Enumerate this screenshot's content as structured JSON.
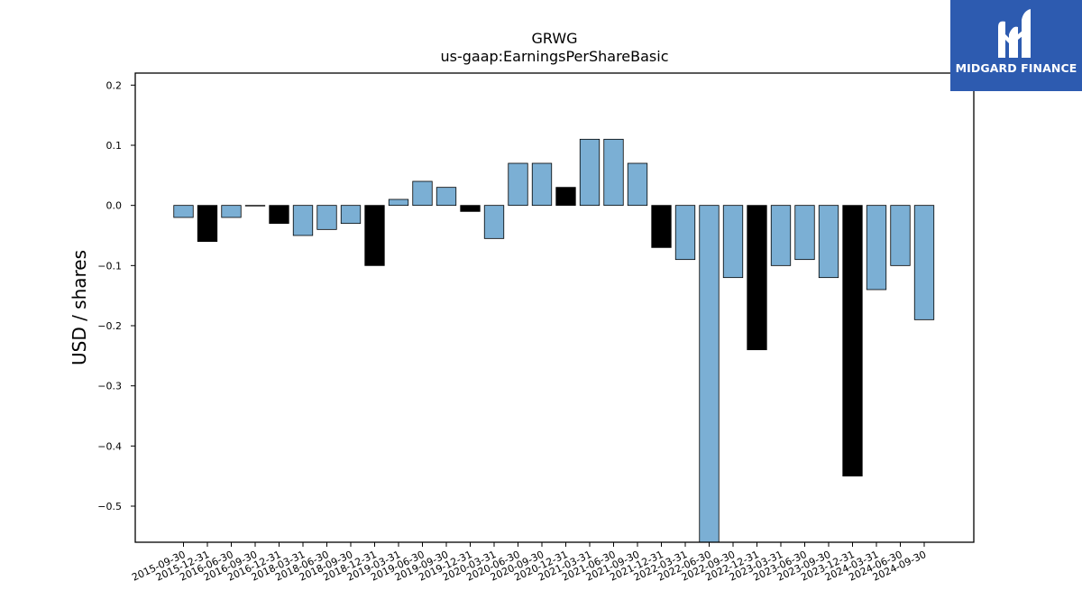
{
  "brand": {
    "name": "MIDGARD FINANCE",
    "logo_icon": "midgard-finance-logo-icon",
    "bg_color": "#2d5bb0"
  },
  "chart_data": {
    "type": "bar",
    "title": "GRWG",
    "subtitle": "us-gaap:EarningsPerShareBasic",
    "xlabel": "",
    "ylabel": "USD / shares",
    "ylim": [
      -0.56,
      0.22
    ],
    "yticks": [
      0.2,
      0.1,
      0.0,
      -0.1,
      -0.2,
      -0.3,
      -0.4,
      -0.5
    ],
    "ytick_labels": [
      "0.2",
      "0.1",
      "0.0",
      "−0.1",
      "−0.2",
      "−0.3",
      "−0.4",
      "−0.5"
    ],
    "grid": false,
    "colors": {
      "quarter": "#7bafd4",
      "year_end": "#000000",
      "edge": "#000000"
    },
    "categories": [
      "2015-09-30",
      "2015-12-31",
      "2016-06-30",
      "2016-09-30",
      "2016-12-31",
      "2018-03-31",
      "2018-06-30",
      "2018-09-30",
      "2018-12-31",
      "2019-03-31",
      "2019-06-30",
      "2019-09-30",
      "2019-12-31",
      "2020-03-31",
      "2020-06-30",
      "2020-09-30",
      "2020-12-31",
      "2021-03-31",
      "2021-06-30",
      "2021-09-30",
      "2021-12-31",
      "2022-03-31",
      "2022-06-30",
      "2022-09-30",
      "2022-12-31",
      "2023-03-31",
      "2023-06-30",
      "2023-09-30",
      "2023-12-31",
      "2024-03-31",
      "2024-06-30",
      "2024-09-30"
    ],
    "values": [
      -0.02,
      -0.06,
      -0.02,
      0.0,
      -0.03,
      -0.05,
      -0.04,
      -0.03,
      -0.1,
      0.01,
      0.04,
      0.03,
      -0.01,
      -0.055,
      0.07,
      0.07,
      0.03,
      0.11,
      0.11,
      0.07,
      -0.07,
      -0.09,
      -0.6,
      -0.12,
      -0.24,
      -0.1,
      -0.09,
      -0.12,
      -0.45,
      -0.14,
      -0.1,
      -0.19
    ],
    "bar_types": [
      "quarter",
      "year_end",
      "quarter",
      "quarter",
      "year_end",
      "quarter",
      "quarter",
      "quarter",
      "year_end",
      "quarter",
      "quarter",
      "quarter",
      "year_end",
      "quarter",
      "quarter",
      "quarter",
      "year_end",
      "quarter",
      "quarter",
      "quarter",
      "year_end",
      "quarter",
      "quarter",
      "quarter",
      "year_end",
      "quarter",
      "quarter",
      "quarter",
      "year_end",
      "quarter",
      "quarter",
      "quarter"
    ]
  }
}
